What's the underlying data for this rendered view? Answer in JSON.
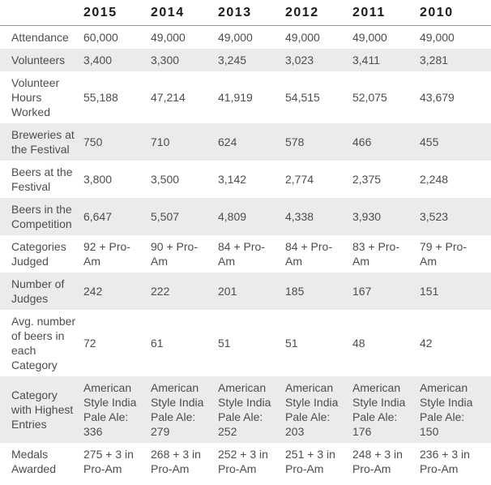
{
  "chart_data": {
    "type": "table",
    "columns": [
      "2015",
      "2014",
      "2013",
      "2012",
      "2011",
      "2010"
    ],
    "rows": [
      {
        "label": "Attendance",
        "values": [
          "60,000",
          "49,000",
          "49,000",
          "49,000",
          "49,000",
          "49,000"
        ]
      },
      {
        "label": "Volunteers",
        "values": [
          "3,400",
          "3,300",
          "3,245",
          "3,023",
          "3,411",
          "3,281"
        ]
      },
      {
        "label": "Volunteer Hours Worked",
        "values": [
          "55,188",
          "47,214",
          "41,919",
          "54,515",
          "52,075",
          "43,679"
        ]
      },
      {
        "label": "Breweries at the Festival",
        "values": [
          "750",
          "710",
          "624",
          "578",
          "466",
          "455"
        ]
      },
      {
        "label": "Beers at the Festival",
        "values": [
          "3,800",
          "3,500",
          "3,142",
          "2,774",
          "2,375",
          "2,248"
        ]
      },
      {
        "label": "Beers in the Competition",
        "values": [
          "6,647",
          "5,507",
          "4,809",
          "4,338",
          "3,930",
          "3,523"
        ]
      },
      {
        "label": "Categories Judged",
        "values": [
          "92 + Pro-Am",
          "90 + Pro-Am",
          "84 + Pro-Am",
          "84 + Pro-Am",
          "83 + Pro-Am",
          "79 + Pro-Am"
        ]
      },
      {
        "label": "Number of Judges",
        "values": [
          "242",
          "222",
          "201",
          "185",
          "167",
          "151"
        ]
      },
      {
        "label": "Avg. number of beers in each Category",
        "values": [
          "72",
          "61",
          "51",
          "51",
          "48",
          "42"
        ]
      },
      {
        "label": "Category with Highest Entries",
        "values": [
          "American Style India Pale Ale: 336",
          "American Style India Pale Ale: 279",
          "American Style India Pale Ale: 252",
          "American Style India Pale Ale: 203",
          "American Style India Pale Ale: 176",
          "American Style India Pale Ale: 150"
        ]
      },
      {
        "label": "Medals Awarded",
        "values": [
          "275 + 3 in Pro-Am",
          "268 + 3 in Pro-Am",
          "252 + 3 in Pro-Am",
          "251 + 3 in Pro-Am",
          "248 + 3 in Pro-Am",
          "236 + 3 in Pro-Am"
        ]
      }
    ]
  },
  "colors": {
    "stripe": "#ebebeb",
    "header_text": "#1a1a1a",
    "body_text": "#4d4d4d",
    "header_border": "#999999",
    "page_bg": "#ffffff"
  }
}
